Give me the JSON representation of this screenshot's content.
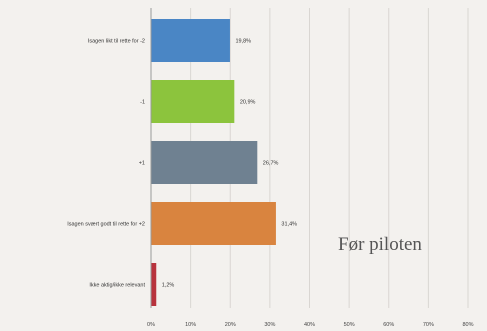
{
  "chart_data": {
    "type": "bar",
    "orientation": "horizontal",
    "categories": [
      "Isagen likt til rette for -2",
      "-1",
      "+1",
      "Isagen svært godt til rette for +2",
      "Ikke aktig/ikke relevant"
    ],
    "values": [
      19.8,
      20.9,
      26.7,
      31.4,
      1.2
    ],
    "value_labels": [
      "19,8%",
      "20,9%",
      "26,7%",
      "31,4%",
      "1,2%"
    ],
    "colors": [
      "#4a86c5",
      "#8cc43d",
      "#6f8191",
      "#d9843f",
      "#b8333d"
    ],
    "xlim": [
      0,
      80
    ],
    "x_ticks": [
      0,
      10,
      20,
      30,
      40,
      50,
      60,
      70,
      80
    ],
    "x_tick_labels": [
      "0%",
      "10%",
      "20%",
      "30%",
      "40%",
      "50%",
      "60%",
      "70%",
      "80%"
    ],
    "grid": true,
    "annotation": "Før piloten"
  }
}
